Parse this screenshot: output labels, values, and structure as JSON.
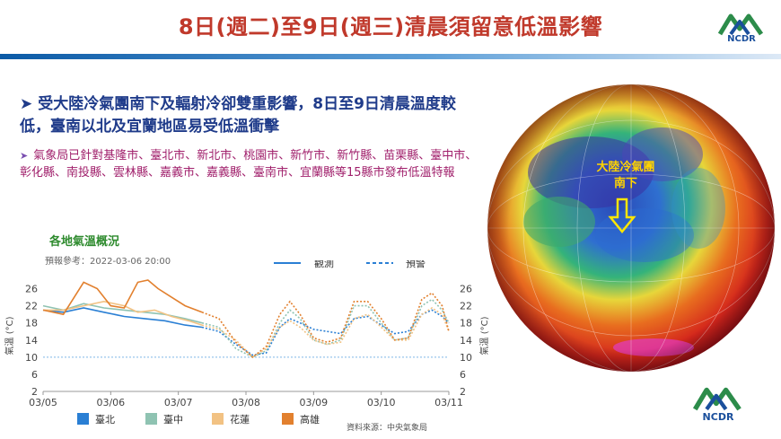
{
  "header": {
    "title": "8日(週二)至9日(週三)清晨須留意低溫影響",
    "logo_text": "NCDR"
  },
  "bullets": {
    "main": "受大陸冷氣團南下及輻射冷卻雙重影響，8日至9日清晨溫度較低，臺南以北及宜蘭地區易受低溫衝擊",
    "sub": "氣象局已針對基隆市、臺北市、新北市、桃園市、新竹市、新竹縣、苗栗縣、臺中市、彰化縣、南投縣、雲林縣、嘉義市、嘉義縣、臺南市、宜蘭縣等15縣市發布低溫特報"
  },
  "globe": {
    "label_line1": "大陸冷氣團",
    "label_line2": "南下"
  },
  "chart": {
    "title": "各地氣溫概況",
    "forecast_ref": "預報參考：2022-03-06 20:00",
    "legend_observed": "觀測",
    "legend_forecast": "預警",
    "source": "資料來源：中央氣象局"
  },
  "colors": {
    "title": "#c0392b",
    "accent_blue": "#1f3b8a",
    "sub_text": "#a01f6b",
    "chart_title": "#2e8b2e",
    "taipei": "#2a7fd4",
    "taichung": "#8fc3b2",
    "hualien": "#f2c283",
    "kaohsiung": "#e2802e"
  },
  "chart_data": {
    "type": "line",
    "title": "",
    "ylabel": "氣溫 (°C)",
    "xlabel": "",
    "ylim": [
      2,
      28
    ],
    "yticks": [
      2,
      6,
      10,
      14,
      18,
      22,
      26
    ],
    "xticks": [
      "03/05",
      "03/06",
      "03/07",
      "03/08",
      "03/09",
      "03/10",
      "03/11"
    ],
    "reference_line": 10,
    "series": [
      {
        "name": "臺北",
        "color": "#2a7fd4",
        "observed": [
          [
            0,
            21
          ],
          [
            0.3,
            20.5
          ],
          [
            0.6,
            21.5
          ],
          [
            0.9,
            20.5
          ],
          [
            1.2,
            19.5
          ],
          [
            1.5,
            19
          ],
          [
            1.8,
            18.5
          ],
          [
            2.1,
            17.5
          ],
          [
            2.35,
            17
          ]
        ],
        "forecast": [
          [
            2.35,
            17
          ],
          [
            2.6,
            16
          ],
          [
            2.85,
            13
          ],
          [
            3.1,
            10.5
          ],
          [
            3.3,
            11
          ],
          [
            3.5,
            17
          ],
          [
            3.65,
            19
          ],
          [
            3.8,
            18
          ],
          [
            4,
            16.5
          ],
          [
            4.2,
            16
          ],
          [
            4.4,
            15.5
          ],
          [
            4.6,
            19
          ],
          [
            4.8,
            19.5
          ],
          [
            5.0,
            17.5
          ],
          [
            5.2,
            15.5
          ],
          [
            5.4,
            16
          ],
          [
            5.6,
            20
          ],
          [
            5.75,
            21
          ],
          [
            5.9,
            19.5
          ],
          [
            6,
            18
          ]
        ]
      },
      {
        "name": "臺中",
        "color": "#8fc3b2",
        "observed": [
          [
            0,
            22
          ],
          [
            0.3,
            21
          ],
          [
            0.6,
            22.5
          ],
          [
            0.9,
            21.5
          ],
          [
            1.2,
            21
          ],
          [
            1.5,
            20.5
          ],
          [
            1.8,
            20
          ],
          [
            2.1,
            19
          ],
          [
            2.35,
            18
          ]
        ],
        "forecast": [
          [
            2.35,
            18
          ],
          [
            2.6,
            17
          ],
          [
            2.85,
            12
          ],
          [
            3.1,
            10
          ],
          [
            3.3,
            11.5
          ],
          [
            3.5,
            18
          ],
          [
            3.65,
            21
          ],
          [
            3.8,
            19
          ],
          [
            4,
            14
          ],
          [
            4.2,
            13
          ],
          [
            4.4,
            14
          ],
          [
            4.6,
            22
          ],
          [
            4.8,
            22
          ],
          [
            5.0,
            18
          ],
          [
            5.2,
            14
          ],
          [
            5.4,
            14.5
          ],
          [
            5.6,
            22
          ],
          [
            5.75,
            23.5
          ],
          [
            5.9,
            21
          ],
          [
            6,
            18
          ]
        ]
      },
      {
        "name": "花蓮",
        "color": "#f2c283",
        "observed": [
          [
            0,
            21
          ],
          [
            0.3,
            21
          ],
          [
            0.6,
            22
          ],
          [
            0.9,
            23
          ],
          [
            1.2,
            22
          ],
          [
            1.4,
            20.5
          ],
          [
            1.65,
            21
          ],
          [
            1.9,
            19.5
          ],
          [
            2.15,
            18.5
          ],
          [
            2.35,
            17.5
          ]
        ],
        "forecast": [
          [
            2.35,
            17.5
          ],
          [
            2.6,
            16.5
          ],
          [
            2.85,
            14
          ],
          [
            3.1,
            10
          ],
          [
            3.3,
            12
          ],
          [
            3.5,
            17
          ],
          [
            3.65,
            18.5
          ],
          [
            3.8,
            17
          ],
          [
            4,
            14
          ],
          [
            4.2,
            13
          ],
          [
            4.4,
            13.5
          ],
          [
            4.6,
            19
          ],
          [
            4.8,
            20
          ],
          [
            5.0,
            17
          ],
          [
            5.2,
            14
          ],
          [
            5.4,
            14
          ],
          [
            5.6,
            20
          ],
          [
            5.75,
            21.5
          ],
          [
            5.9,
            20
          ],
          [
            6,
            16
          ]
        ]
      },
      {
        "name": "高雄",
        "color": "#e2802e",
        "observed": [
          [
            0,
            21
          ],
          [
            0.3,
            20
          ],
          [
            0.6,
            27.5
          ],
          [
            0.8,
            26
          ],
          [
            1.0,
            22
          ],
          [
            1.2,
            21.5
          ],
          [
            1.4,
            27.5
          ],
          [
            1.55,
            28
          ],
          [
            1.7,
            26
          ],
          [
            1.9,
            24
          ],
          [
            2.1,
            22
          ],
          [
            2.35,
            20.5
          ]
        ],
        "forecast": [
          [
            2.35,
            20.5
          ],
          [
            2.6,
            19
          ],
          [
            2.85,
            13.5
          ],
          [
            3.1,
            10
          ],
          [
            3.3,
            12.5
          ],
          [
            3.5,
            20
          ],
          [
            3.65,
            23
          ],
          [
            3.8,
            20
          ],
          [
            4,
            14.5
          ],
          [
            4.2,
            13.5
          ],
          [
            4.4,
            14.5
          ],
          [
            4.6,
            23
          ],
          [
            4.8,
            23
          ],
          [
            5.0,
            19
          ],
          [
            5.2,
            14
          ],
          [
            5.4,
            14.5
          ],
          [
            5.6,
            23.5
          ],
          [
            5.75,
            25
          ],
          [
            5.9,
            22
          ],
          [
            6,
            16
          ]
        ]
      }
    ]
  }
}
